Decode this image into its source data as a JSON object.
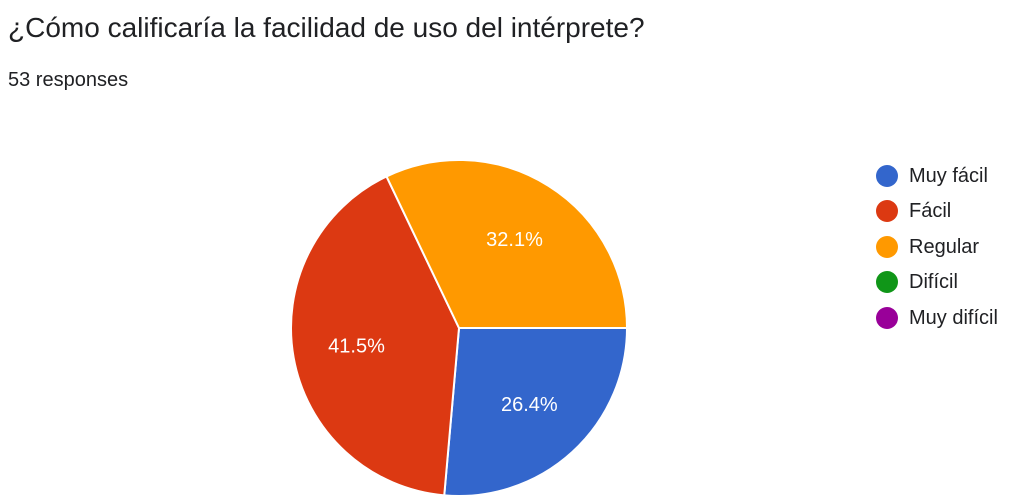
{
  "question": "¿Cómo calificaría la facilidad de uso del intérprete?",
  "responses_label": "53 responses",
  "chart_data": {
    "type": "pie",
    "categories": [
      "Muy fácil",
      "Fácil",
      "Regular",
      "Difícil",
      "Muy difícil"
    ],
    "values": [
      26.4,
      41.5,
      32.1,
      0,
      0
    ],
    "value_labels": [
      "26.4%",
      "41.5%",
      "32.1%",
      "",
      ""
    ],
    "colors": [
      "#3366cc",
      "#dc3912",
      "#ff9900",
      "#109618",
      "#990099"
    ],
    "legend_position": "right"
  }
}
